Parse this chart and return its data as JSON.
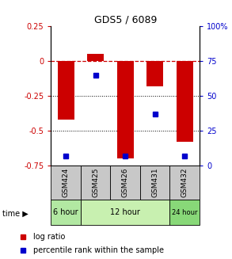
{
  "title": "GDS5 / 6089",
  "samples": [
    "GSM424",
    "GSM425",
    "GSM426",
    "GSM431",
    "GSM432"
  ],
  "log_ratio": [
    -0.42,
    0.05,
    -0.7,
    -0.18,
    -0.58
  ],
  "percentile_rank": [
    0.07,
    0.65,
    0.07,
    0.37,
    0.07
  ],
  "bar_color": "#cc0000",
  "dot_color": "#0000cc",
  "background_color": "#ffffff",
  "dashed_zero_color": "#cc0000",
  "sample_bg_color": "#c8c8c8",
  "group_spans": [
    {
      "label": "6 hour",
      "start": 0,
      "end": 0,
      "color": "#b2e8a2"
    },
    {
      "label": "12 hour",
      "start": 1,
      "end": 3,
      "color": "#c8f0b0"
    },
    {
      "label": "24 hour",
      "start": 4,
      "end": 4,
      "color": "#88d878"
    }
  ],
  "bar_width": 0.55,
  "ylim": [
    -0.75,
    0.25
  ],
  "yticks_left": [
    0.25,
    0.0,
    -0.25,
    -0.5,
    -0.75
  ],
  "yticklabels_left": [
    "0.25",
    "0",
    "-0.25",
    "-0.5",
    "-0.75"
  ],
  "yticks_right": [
    0.25,
    0.0,
    -0.25,
    -0.5,
    -0.75
  ],
  "yticklabels_right": [
    "100%",
    "75",
    "50",
    "25",
    "0"
  ],
  "legend_labels": [
    "log ratio",
    "percentile rank within the sample"
  ]
}
